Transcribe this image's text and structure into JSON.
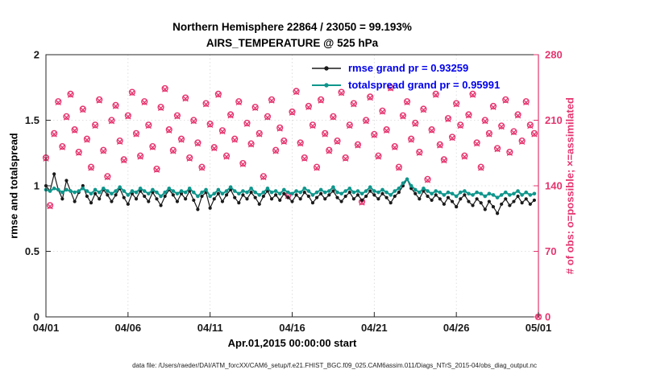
{
  "figure": {
    "title_line1": "Northern Hemisphere 22864 / 23050 = 99.193%",
    "title_line2": "AIRS_TEMPERATURE @ 525 hPa",
    "xlabel": "Apr.01,2015 00:00:00 start",
    "ylabel_left": "rmse and totalspread",
    "ylabel_right": "# of obs: o=possible; ×=assimilated",
    "caption": "data file: /Users/raeder/DAI/ATM_forcXX/CAM6_setup/f.e21.FHIST_BGC.f09_025.CAM6assim.011/Diags_NTrS_2015-04/obs_diag_output.nc",
    "legend": [
      {
        "label": "rmse grand pr = 0.93259",
        "color": "#1a1a1a"
      },
      {
        "label": "totalspread grand pr = 0.95991",
        "color": "#0f968c"
      }
    ]
  },
  "colors": {
    "rmse": "#1a1a1a",
    "totalspread": "#0f968c",
    "obs": "#e5356f",
    "legend_text": "#0000ee",
    "axis": "#262626",
    "grid": "#c9c9c9"
  },
  "chart_data": {
    "type": "line",
    "title": "Northern Hemisphere 22864 / 23050 = 99.193% — AIRS_TEMPERATURE @ 525 hPa",
    "xlabel": "Apr.01,2015 00:00:00 start",
    "ylabel_left": "rmse and totalspread",
    "ylabel_right": "# of obs: o=possible; ×=assimilated",
    "legend_position": "top-center-inside",
    "grid": true,
    "xlim": [
      0,
      30
    ],
    "ylim_left": [
      0,
      2
    ],
    "ylim_right": [
      0,
      280
    ],
    "xticks": [
      0,
      5,
      10,
      15,
      20,
      25,
      30
    ],
    "xtick_labels": [
      "04/01",
      "04/06",
      "04/11",
      "04/16",
      "04/21",
      "04/26",
      "05/01"
    ],
    "yticks_left": [
      0,
      0.5,
      1,
      1.5,
      2
    ],
    "ytick_left_labels": [
      "0",
      "0.5",
      "1",
      "1.5",
      "2"
    ],
    "yticks_right": [
      0,
      70,
      140,
      210,
      280
    ],
    "ytick_right_labels": [
      "0",
      "70",
      "140",
      "210",
      "280"
    ],
    "x_step_days": 0.25,
    "series": [
      {
        "name": "rmse",
        "axis": "left",
        "marker": "filled-circle",
        "grand_mean": 0.93259,
        "values": [
          1.0,
          0.96,
          1.09,
          0.97,
          0.9,
          1.04,
          0.96,
          0.88,
          0.95,
          1.0,
          0.92,
          0.87,
          0.94,
          0.9,
          0.97,
          0.93,
          0.88,
          0.93,
          0.98,
          0.91,
          0.86,
          0.94,
          0.9,
          0.96,
          0.92,
          0.88,
          0.95,
          0.9,
          0.85,
          0.92,
          0.97,
          0.93,
          0.88,
          0.94,
          0.9,
          0.96,
          0.89,
          0.82,
          0.92,
          0.95,
          0.83,
          0.9,
          0.94,
          0.88,
          0.93,
          0.97,
          0.91,
          0.87,
          0.93,
          0.9,
          0.95,
          0.91,
          0.86,
          0.92,
          0.96,
          0.9,
          0.93,
          0.89,
          0.94,
          0.91,
          0.88,
          0.93,
          0.9,
          0.95,
          0.92,
          0.87,
          0.91,
          0.94,
          0.9,
          0.93,
          0.96,
          0.91,
          0.88,
          0.92,
          0.95,
          0.9,
          0.93,
          0.89,
          0.92,
          0.96,
          0.93,
          0.9,
          0.94,
          0.91,
          0.87,
          0.92,
          0.95,
          1.0,
          1.05,
          0.98,
          0.94,
          0.9,
          0.96,
          0.92,
          0.89,
          0.93,
          0.9,
          0.86,
          0.91,
          0.88,
          0.84,
          0.9,
          0.93,
          0.88,
          0.85,
          0.9,
          0.87,
          0.82,
          0.88,
          0.84,
          0.79,
          0.86,
          0.9,
          0.85,
          0.88,
          0.92,
          0.87,
          0.9,
          0.86,
          0.89,
          null
        ]
      },
      {
        "name": "totalspread",
        "axis": "left",
        "marker": "filled-circle",
        "grand_mean": 0.95991,
        "values": [
          0.97,
          0.96,
          0.98,
          0.97,
          0.95,
          0.97,
          0.96,
          0.95,
          0.96,
          0.98,
          0.96,
          0.94,
          0.97,
          0.95,
          0.98,
          0.96,
          0.94,
          0.96,
          0.99,
          0.96,
          0.93,
          0.96,
          0.95,
          0.98,
          0.96,
          0.94,
          0.97,
          0.95,
          0.92,
          0.95,
          0.98,
          0.96,
          0.94,
          0.96,
          0.95,
          0.98,
          0.95,
          0.92,
          0.95,
          0.97,
          0.92,
          0.94,
          0.97,
          0.94,
          0.96,
          0.99,
          0.96,
          0.94,
          0.96,
          0.95,
          0.98,
          0.95,
          0.93,
          0.95,
          0.98,
          0.95,
          0.96,
          0.94,
          0.97,
          0.95,
          0.94,
          0.96,
          0.95,
          0.98,
          0.96,
          0.93,
          0.95,
          0.97,
          0.95,
          0.96,
          0.99,
          0.95,
          0.94,
          0.96,
          0.98,
          0.95,
          0.96,
          0.94,
          0.96,
          0.99,
          0.96,
          0.95,
          0.97,
          0.95,
          0.93,
          0.96,
          0.98,
          1.02,
          1.05,
          1.0,
          0.97,
          0.95,
          0.98,
          0.96,
          0.94,
          0.96,
          0.95,
          0.93,
          0.95,
          0.94,
          0.92,
          0.95,
          0.96,
          0.94,
          0.93,
          0.95,
          0.94,
          0.92,
          0.94,
          0.93,
          0.91,
          0.93,
          0.95,
          0.93,
          0.94,
          0.96,
          0.93,
          0.95,
          0.93,
          0.94,
          null
        ]
      },
      {
        "name": "obs_possible",
        "axis": "right",
        "marker": "open-circle",
        "total": 23050,
        "values": [
          170,
          119,
          196,
          230,
          182,
          214,
          238,
          200,
          176,
          222,
          190,
          160,
          205,
          232,
          178,
          150,
          210,
          226,
          188,
          168,
          215,
          240,
          196,
          172,
          230,
          205,
          182,
          158,
          224,
          244,
          200,
          178,
          215,
          190,
          234,
          170,
          210,
          186,
          160,
          228,
          206,
          181,
          238,
          199,
          172,
          216,
          190,
          230,
          164,
          207,
          185,
          224,
          196,
          150,
          214,
          232,
          178,
          202,
          188,
          130,
          219,
          241,
          186,
          170,
          225,
          205,
          160,
          232,
          196,
          178,
          214,
          188,
          240,
          170,
          205,
          228,
          184,
          123,
          210,
          235,
          195,
          172,
          220,
          200,
          245,
          182,
          160,
          215,
          230,
          190,
          207,
          176,
          222,
          147,
          200,
          238,
          184,
          168,
          212,
          192,
          228,
          205,
          172,
          216,
          238,
          186,
          160,
          210,
          196,
          225,
          180,
          204,
          232,
          176,
          198,
          216,
          188,
          230,
          205,
          196,
          0
        ]
      },
      {
        "name": "obs_assimilated",
        "axis": "right",
        "marker": "x-cross",
        "total": 22864,
        "values": [
          169,
          118,
          195,
          229,
          181,
          213,
          237,
          199,
          175,
          221,
          189,
          159,
          204,
          231,
          177,
          149,
          209,
          225,
          187,
          167,
          214,
          239,
          195,
          171,
          229,
          204,
          181,
          157,
          223,
          243,
          199,
          177,
          214,
          189,
          233,
          169,
          209,
          185,
          159,
          227,
          205,
          180,
          237,
          198,
          171,
          215,
          189,
          229,
          163,
          206,
          184,
          223,
          195,
          149,
          213,
          231,
          177,
          201,
          187,
          129,
          218,
          240,
          185,
          169,
          224,
          204,
          159,
          231,
          195,
          177,
          213,
          187,
          239,
          169,
          204,
          227,
          183,
          122,
          209,
          234,
          194,
          171,
          219,
          199,
          244,
          181,
          159,
          214,
          229,
          189,
          206,
          175,
          221,
          146,
          199,
          237,
          183,
          167,
          211,
          191,
          227,
          204,
          171,
          215,
          237,
          185,
          159,
          209,
          195,
          224,
          179,
          203,
          231,
          175,
          197,
          215,
          187,
          229,
          204,
          195,
          0
        ]
      }
    ]
  }
}
